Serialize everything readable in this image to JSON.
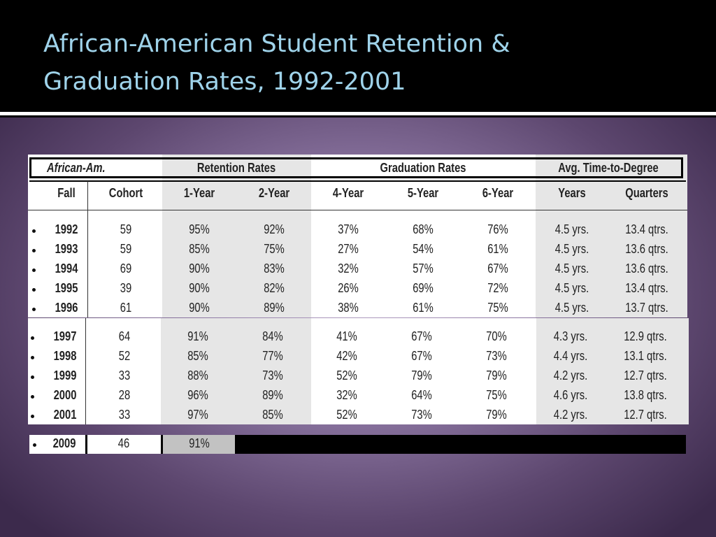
{
  "title": {
    "line1": "African-American Student Retention &",
    "line2": "Graduation Rates, 1992-2001"
  },
  "table": {
    "group_headers": {
      "label": "African-Am.",
      "retention": "Retention Rates",
      "graduation": "Graduation Rates",
      "time": "Avg. Time-to-Degree"
    },
    "columns": [
      "Fall",
      "Cohort",
      "1-Year",
      "2-Year",
      "4-Year",
      "5-Year",
      "6-Year",
      "Years",
      "Quarters"
    ],
    "rows_a": [
      [
        "1992",
        "59",
        "95%",
        "92%",
        "37%",
        "68%",
        "76%",
        "4.5 yrs.",
        "13.4 qtrs."
      ],
      [
        "1993",
        "59",
        "85%",
        "75%",
        "27%",
        "54%",
        "61%",
        "4.5 yrs.",
        "13.6 qtrs."
      ],
      [
        "1994",
        "69",
        "90%",
        "83%",
        "32%",
        "57%",
        "67%",
        "4.5 yrs.",
        "13.6 qtrs."
      ],
      [
        "1995",
        "39",
        "90%",
        "82%",
        "26%",
        "69%",
        "72%",
        "4.5 yrs.",
        "13.4 qtrs."
      ],
      [
        "1996",
        "61",
        "90%",
        "89%",
        "38%",
        "61%",
        "75%",
        "4.5 yrs.",
        "13.7 qtrs."
      ]
    ],
    "rows_b": [
      [
        "1997",
        "64",
        "91%",
        "84%",
        "41%",
        "67%",
        "70%",
        "4.3 yrs.",
        "12.9 qtrs."
      ],
      [
        "1998",
        "52",
        "85%",
        "77%",
        "42%",
        "67%",
        "73%",
        "4.4 yrs.",
        "13.1 qtrs."
      ],
      [
        "1999",
        "33",
        "88%",
        "73%",
        "52%",
        "79%",
        "79%",
        "4.2 yrs.",
        "12.7 qtrs."
      ],
      [
        "2000",
        "28",
        "96%",
        "89%",
        "32%",
        "64%",
        "75%",
        "4.6 yrs.",
        "13.8 qtrs."
      ],
      [
        "2001",
        "33",
        "97%",
        "85%",
        "52%",
        "73%",
        "79%",
        "4.2 yrs.",
        "12.7 qtrs."
      ]
    ],
    "row_c": [
      "2009",
      "46",
      "91%"
    ]
  }
}
